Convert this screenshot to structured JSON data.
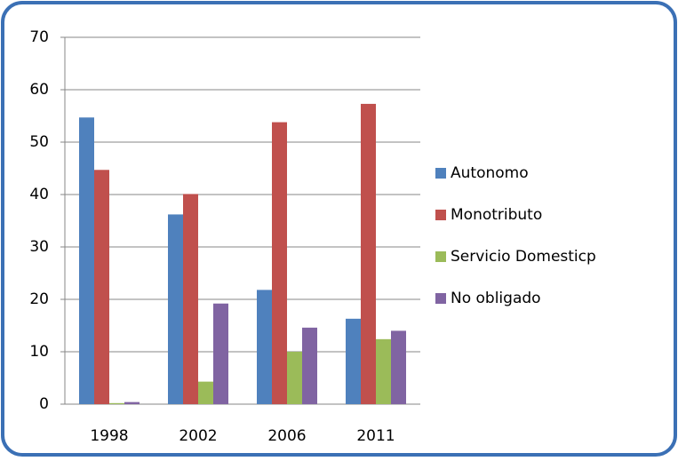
{
  "chart_data": {
    "type": "bar",
    "categories": [
      "1998",
      "2002",
      "2006",
      "2011"
    ],
    "series": [
      {
        "name": "Autonomo",
        "color": "#4f81bd",
        "values": [
          54.7,
          36.2,
          21.8,
          16.3
        ]
      },
      {
        "name": "Monotributo",
        "color": "#c0504d",
        "values": [
          44.7,
          40.1,
          53.8,
          57.3
        ]
      },
      {
        "name": "Servicio Domesticp",
        "color": "#9bbb59",
        "values": [
          0.2,
          4.3,
          10,
          12.4
        ]
      },
      {
        "name": "No obligado",
        "color": "#8064a2",
        "values": [
          0.4,
          19.2,
          14.6,
          14.0
        ]
      }
    ],
    "ylim": [
      0,
      70
    ],
    "yticks": [
      0,
      10,
      20,
      30,
      40,
      50,
      60,
      70
    ],
    "grid": true,
    "legend": "right"
  }
}
